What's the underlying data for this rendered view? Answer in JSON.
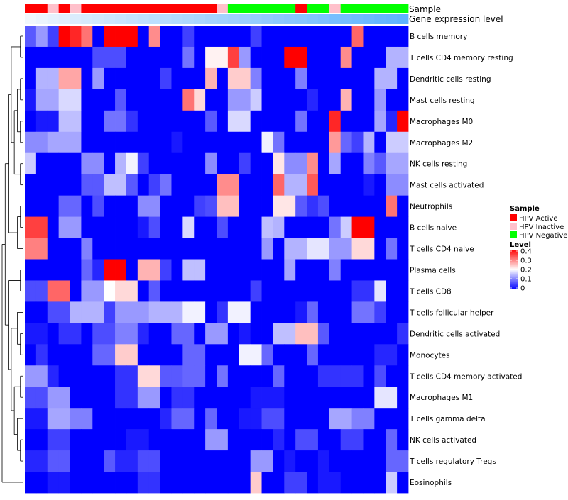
{
  "chart_data": {
    "type": "heatmap",
    "title": "",
    "rows": [
      "B cells memory",
      "T cells CD4 memory resting",
      "Dendritic cells resting",
      "Mast cells resting",
      "Macrophages M0",
      "Macrophages M2",
      "NK cells resting",
      "Mast cells activated",
      "Neutrophils",
      "B cells naive",
      "T cells CD4 naive",
      "Plasma cells",
      "T cells CD8",
      "T cells follicular helper",
      "Dendritic cells activated",
      "Monocytes",
      "T cells CD4 memory activated",
      "Macrophages M1",
      "T cells gamma delta",
      "NK cells activated",
      "T cells regulatory  Tregs",
      "Eosinophils"
    ],
    "annotations": {
      "sample_label": "Sample",
      "expression_label": "Gene expression level",
      "sample_groups": [
        "Active",
        "Active",
        "Inactive",
        "Active",
        "Inactive",
        "Active",
        "Active",
        "Active",
        "Active",
        "Active",
        "Active",
        "Active",
        "Active",
        "Active",
        "Active",
        "Active",
        "Active",
        "Inactive",
        "Negative",
        "Negative",
        "Negative",
        "Negative",
        "Negative",
        "Negative",
        "Active",
        "Negative",
        "Negative",
        "Inactive",
        "Negative",
        "Negative",
        "Negative",
        "Negative",
        "Negative",
        "Negative"
      ],
      "expression_levels": [
        0.02,
        0.06,
        0.1,
        0.13,
        0.17,
        0.2,
        0.23,
        0.26,
        0.29,
        0.32,
        0.35,
        0.38,
        0.41,
        0.44,
        0.47,
        0.5,
        0.53,
        0.55,
        0.58,
        0.6,
        0.63,
        0.66,
        0.69,
        0.72,
        0.74,
        0.77,
        0.8,
        0.83,
        0.86,
        0.89,
        0.92,
        0.95,
        0.97,
        1.0
      ],
      "expression_colors": [
        "#f4f8fd",
        "#5fb3ff"
      ]
    },
    "values": [
      [
        0.07,
        0.12,
        0.05,
        0.4,
        0.37,
        0.31,
        0.0,
        0.4,
        0.4,
        0.4,
        0.0,
        0.29,
        0.0,
        0.0,
        0.05,
        0.0,
        0.0,
        0.0,
        0.0,
        0.0,
        0.05,
        0.0,
        0.0,
        0.0,
        0.0,
        0.0,
        0.0,
        0.0,
        0.0,
        0.32,
        0.0,
        0.0,
        0.0,
        0.0
      ],
      [
        0.0,
        0.0,
        0.0,
        0.0,
        0.0,
        0.0,
        0.06,
        0.06,
        0.06,
        0.0,
        0.0,
        0.0,
        0.0,
        0.0,
        0.09,
        0.0,
        0.21,
        0.21,
        0.35,
        0.12,
        0.0,
        0.0,
        0.0,
        0.4,
        0.4,
        0.0,
        0.0,
        0.0,
        0.29,
        0.0,
        0.0,
        0.0,
        0.14,
        0.14
      ],
      [
        0.0,
        0.14,
        0.14,
        0.27,
        0.27,
        0.0,
        0.12,
        0.0,
        0.0,
        0.0,
        0.0,
        0.0,
        0.05,
        0.0,
        0.0,
        0.0,
        0.26,
        0.0,
        0.24,
        0.24,
        0.1,
        0.0,
        0.0,
        0.0,
        0.1,
        0.0,
        0.0,
        0.0,
        0.0,
        0.0,
        0.0,
        0.14,
        0.14,
        0.0
      ],
      [
        0.02,
        0.13,
        0.13,
        0.17,
        0.17,
        0.0,
        0.0,
        0.0,
        0.07,
        0.0,
        0.0,
        0.0,
        0.0,
        0.0,
        0.31,
        0.23,
        0.0,
        0.0,
        0.12,
        0.12,
        0.16,
        0.0,
        0.0,
        0.0,
        0.0,
        0.03,
        0.0,
        0.0,
        0.26,
        0.0,
        0.0,
        0.12,
        0.0,
        0.0
      ],
      [
        0.0,
        0.02,
        0.02,
        0.15,
        0.15,
        0.0,
        0.0,
        0.09,
        0.09,
        0.04,
        0.0,
        0.0,
        0.0,
        0.0,
        0.0,
        0.0,
        0.07,
        0.0,
        0.17,
        0.17,
        0.0,
        0.0,
        0.0,
        0.0,
        0.09,
        0.0,
        0.0,
        0.37,
        0.0,
        0.0,
        0.0,
        0.13,
        0.03,
        0.4
      ],
      [
        0.11,
        0.11,
        0.13,
        0.13,
        0.13,
        0.0,
        0.0,
        0.0,
        0.0,
        0.0,
        0.0,
        0.0,
        0.0,
        0.02,
        0.0,
        0.0,
        0.0,
        0.0,
        0.0,
        0.0,
        0.0,
        0.19,
        0.09,
        0.0,
        0.0,
        0.0,
        0.0,
        0.28,
        0.08,
        0.05,
        0.14,
        0.0,
        0.16,
        0.16
      ],
      [
        0.16,
        0.0,
        0.0,
        0.0,
        0.0,
        0.11,
        0.11,
        0.0,
        0.14,
        0.19,
        0.05,
        0.0,
        0.0,
        0.0,
        0.0,
        0.0,
        0.11,
        0.0,
        0.0,
        0.05,
        0.0,
        0.0,
        0.22,
        0.11,
        0.11,
        0.29,
        0.0,
        0.13,
        0.0,
        0.0,
        0.1,
        0.07,
        0.13,
        0.13
      ],
      [
        0.0,
        0.0,
        0.0,
        0.0,
        0.0,
        0.07,
        0.07,
        0.15,
        0.15,
        0.07,
        0.0,
        0.05,
        0.09,
        0.0,
        0.0,
        0.0,
        0.0,
        0.29,
        0.29,
        0.0,
        0.0,
        0.0,
        0.32,
        0.14,
        0.14,
        0.33,
        0.0,
        0.0,
        0.0,
        0.0,
        0.02,
        0.0,
        0.11,
        0.11
      ],
      [
        0.0,
        0.0,
        0.0,
        0.08,
        0.08,
        0.0,
        0.06,
        0.0,
        0.0,
        0.0,
        0.11,
        0.11,
        0.0,
        0.0,
        0.0,
        0.05,
        0.06,
        0.25,
        0.25,
        0.0,
        0.0,
        0.0,
        0.22,
        0.22,
        0.07,
        0.04,
        0.06,
        0.0,
        0.0,
        0.0,
        0.0,
        0.0,
        0.31,
        0.0
      ],
      [
        0.35,
        0.35,
        0.0,
        0.12,
        0.12,
        0.0,
        0.0,
        0.0,
        0.0,
        0.0,
        0.02,
        0.06,
        0.0,
        0.0,
        0.17,
        0.0,
        0.0,
        0.06,
        0.0,
        0.0,
        0.0,
        0.15,
        0.14,
        0.0,
        0.0,
        0.0,
        0.0,
        0.09,
        0.16,
        0.4,
        0.4,
        0.0,
        0.0,
        0.0
      ],
      [
        0.3,
        0.3,
        0.0,
        0.0,
        0.0,
        0.1,
        0.0,
        0.0,
        0.0,
        0.0,
        0.0,
        0.0,
        0.0,
        0.0,
        0.0,
        0.0,
        0.0,
        0.0,
        0.0,
        0.0,
        0.0,
        0.12,
        0.0,
        0.14,
        0.14,
        0.18,
        0.18,
        0.12,
        0.12,
        0.23,
        0.23,
        0.0,
        0.09,
        0.0
      ],
      [
        0.0,
        0.0,
        0.0,
        0.0,
        0.0,
        0.08,
        0.03,
        0.4,
        0.4,
        0.0,
        0.26,
        0.26,
        0.05,
        0.0,
        0.15,
        0.15,
        0.0,
        0.0,
        0.0,
        0.0,
        0.0,
        0.0,
        0.0,
        0.13,
        0.0,
        0.0,
        0.0,
        0.1,
        0.0,
        0.0,
        0.0,
        0.0,
        0.0,
        0.0
      ],
      [
        0.06,
        0.06,
        0.32,
        0.32,
        0.0,
        0.12,
        0.12,
        0.2,
        0.23,
        0.23,
        0.0,
        0.07,
        0.0,
        0.0,
        0.0,
        0.0,
        0.0,
        0.0,
        0.0,
        0.0,
        0.05,
        0.0,
        0.0,
        0.0,
        0.0,
        0.0,
        0.0,
        0.0,
        0.0,
        0.04,
        0.04,
        0.18,
        0.0,
        0.0
      ],
      [
        0.0,
        0.0,
        0.06,
        0.06,
        0.14,
        0.14,
        0.14,
        0.05,
        0.12,
        0.12,
        0.12,
        0.14,
        0.14,
        0.14,
        0.19,
        0.19,
        0.0,
        0.04,
        0.19,
        0.19,
        0.0,
        0.0,
        0.0,
        0.0,
        0.02,
        0.08,
        0.0,
        0.0,
        0.0,
        0.09,
        0.09,
        0.05,
        0.0,
        0.0
      ],
      [
        0.02,
        0.02,
        0.0,
        0.04,
        0.04,
        0.0,
        0.06,
        0.06,
        0.1,
        0.1,
        0.03,
        0.0,
        0.0,
        0.08,
        0.08,
        0.0,
        0.12,
        0.12,
        0.0,
        0.02,
        0.0,
        0.0,
        0.15,
        0.15,
        0.25,
        0.25,
        0.07,
        0.0,
        0.0,
        0.0,
        0.0,
        0.0,
        0.0,
        0.04
      ],
      [
        0.0,
        0.04,
        0.0,
        0.0,
        0.0,
        0.0,
        0.08,
        0.08,
        0.24,
        0.24,
        0.0,
        0.0,
        0.0,
        0.0,
        0.08,
        0.08,
        0.0,
        0.0,
        0.0,
        0.19,
        0.19,
        0.08,
        0.0,
        0.0,
        0.0,
        0.08,
        0.0,
        0.0,
        0.0,
        0.0,
        0.0,
        0.03,
        0.03,
        0.0
      ],
      [
        0.12,
        0.12,
        0.03,
        0.0,
        0.0,
        0.0,
        0.0,
        0.0,
        0.04,
        0.04,
        0.23,
        0.23,
        0.07,
        0.07,
        0.08,
        0.08,
        0.0,
        0.09,
        0.0,
        0.0,
        0.0,
        0.0,
        0.08,
        0.0,
        0.0,
        0.0,
        0.04,
        0.04,
        0.04,
        0.04,
        0.0,
        0.06,
        0.0,
        0.0
      ],
      [
        0.06,
        0.06,
        0.12,
        0.12,
        0.0,
        0.0,
        0.0,
        0.0,
        0.04,
        0.04,
        0.12,
        0.12,
        0.0,
        0.04,
        0.04,
        0.0,
        0.0,
        0.0,
        0.0,
        0.0,
        0.02,
        0.02,
        0.02,
        0.0,
        0.0,
        0.0,
        0.0,
        0.0,
        0.0,
        0.0,
        0.0,
        0.18,
        0.18,
        0.0
      ],
      [
        0.02,
        0.02,
        0.13,
        0.13,
        0.1,
        0.1,
        0.0,
        0.0,
        0.0,
        0.0,
        0.0,
        0.0,
        0.03,
        0.08,
        0.08,
        0.0,
        0.08,
        0.0,
        0.0,
        0.02,
        0.02,
        0.06,
        0.06,
        0.0,
        0.0,
        0.0,
        0.0,
        0.13,
        0.13,
        0.1,
        0.1,
        0.0,
        0.0,
        0.0
      ],
      [
        0.0,
        0.0,
        0.05,
        0.05,
        0.0,
        0.0,
        0.0,
        0.0,
        0.0,
        0.02,
        0.02,
        0.0,
        0.0,
        0.0,
        0.0,
        0.0,
        0.12,
        0.12,
        0.0,
        0.0,
        0.0,
        0.0,
        0.03,
        0.0,
        0.06,
        0.06,
        0.0,
        0.0,
        0.05,
        0.05,
        0.0,
        0.0,
        0.08,
        0.0
      ],
      [
        0.03,
        0.03,
        0.07,
        0.07,
        0.0,
        0.0,
        0.0,
        0.07,
        0.03,
        0.03,
        0.06,
        0.06,
        0.0,
        0.0,
        0.0,
        0.0,
        0.0,
        0.0,
        0.0,
        0.0,
        0.12,
        0.12,
        0.0,
        0.02,
        0.0,
        0.0,
        0.02,
        0.0,
        0.0,
        0.0,
        0.0,
        0.0,
        0.08,
        0.08
      ],
      [
        0.0,
        0.0,
        0.02,
        0.02,
        0.0,
        0.0,
        0.0,
        0.0,
        0.0,
        0.0,
        0.04,
        0.04,
        0.0,
        0.0,
        0.0,
        0.0,
        0.0,
        0.0,
        0.0,
        0.0,
        0.24,
        0.0,
        0.0,
        0.05,
        0.05,
        0.0,
        0.02,
        0.02,
        0.0,
        0.0,
        0.0,
        0.0,
        0.16,
        0.0
      ]
    ],
    "color_scale": {
      "min": 0,
      "max": 0.4,
      "low": "#0000ff",
      "mid": "#ffffff",
      "high": "#ff0000"
    },
    "legend": {
      "sample": {
        "title": "Sample",
        "items": [
          {
            "label": "HPV Active",
            "color": "#ff0000"
          },
          {
            "label": "HPV Inactive",
            "color": "#ffc0cb"
          },
          {
            "label": "HPV Negative",
            "color": "#00ff00"
          }
        ]
      },
      "level": {
        "title": "Level",
        "ticks": [
          {
            "value": 0.4,
            "label": "0.4"
          },
          {
            "value": 0.3,
            "label": "0.3"
          },
          {
            "value": 0.2,
            "label": "0.2"
          },
          {
            "value": 0.1,
            "label": "0.1"
          },
          {
            "value": 0,
            "label": "0"
          }
        ]
      },
      "placement": "right"
    },
    "dendrogram": {
      "side": "left",
      "tree": [
        [
          [
            [
              [
                0,
                1
              ],
              [
                [
                  [
                    2,
                    3
                  ],
                  [
                    4,
                    5
                  ]
                ],
                [
                  6,
                  7
                ]
              ]
            ],
            [
              [
                8,
                9
              ],
              10
            ]
          ],
          [
            [
              11,
              12
            ],
            [
              [
                13,
                [
                  14,
                  15
                ]
              ],
              [
                [
                  16,
                  17
                ],
                [
                  18,
                  [
                    19,
                    20
                  ]
                ]
              ]
            ]
          ]
        ],
        21
      ]
    }
  }
}
